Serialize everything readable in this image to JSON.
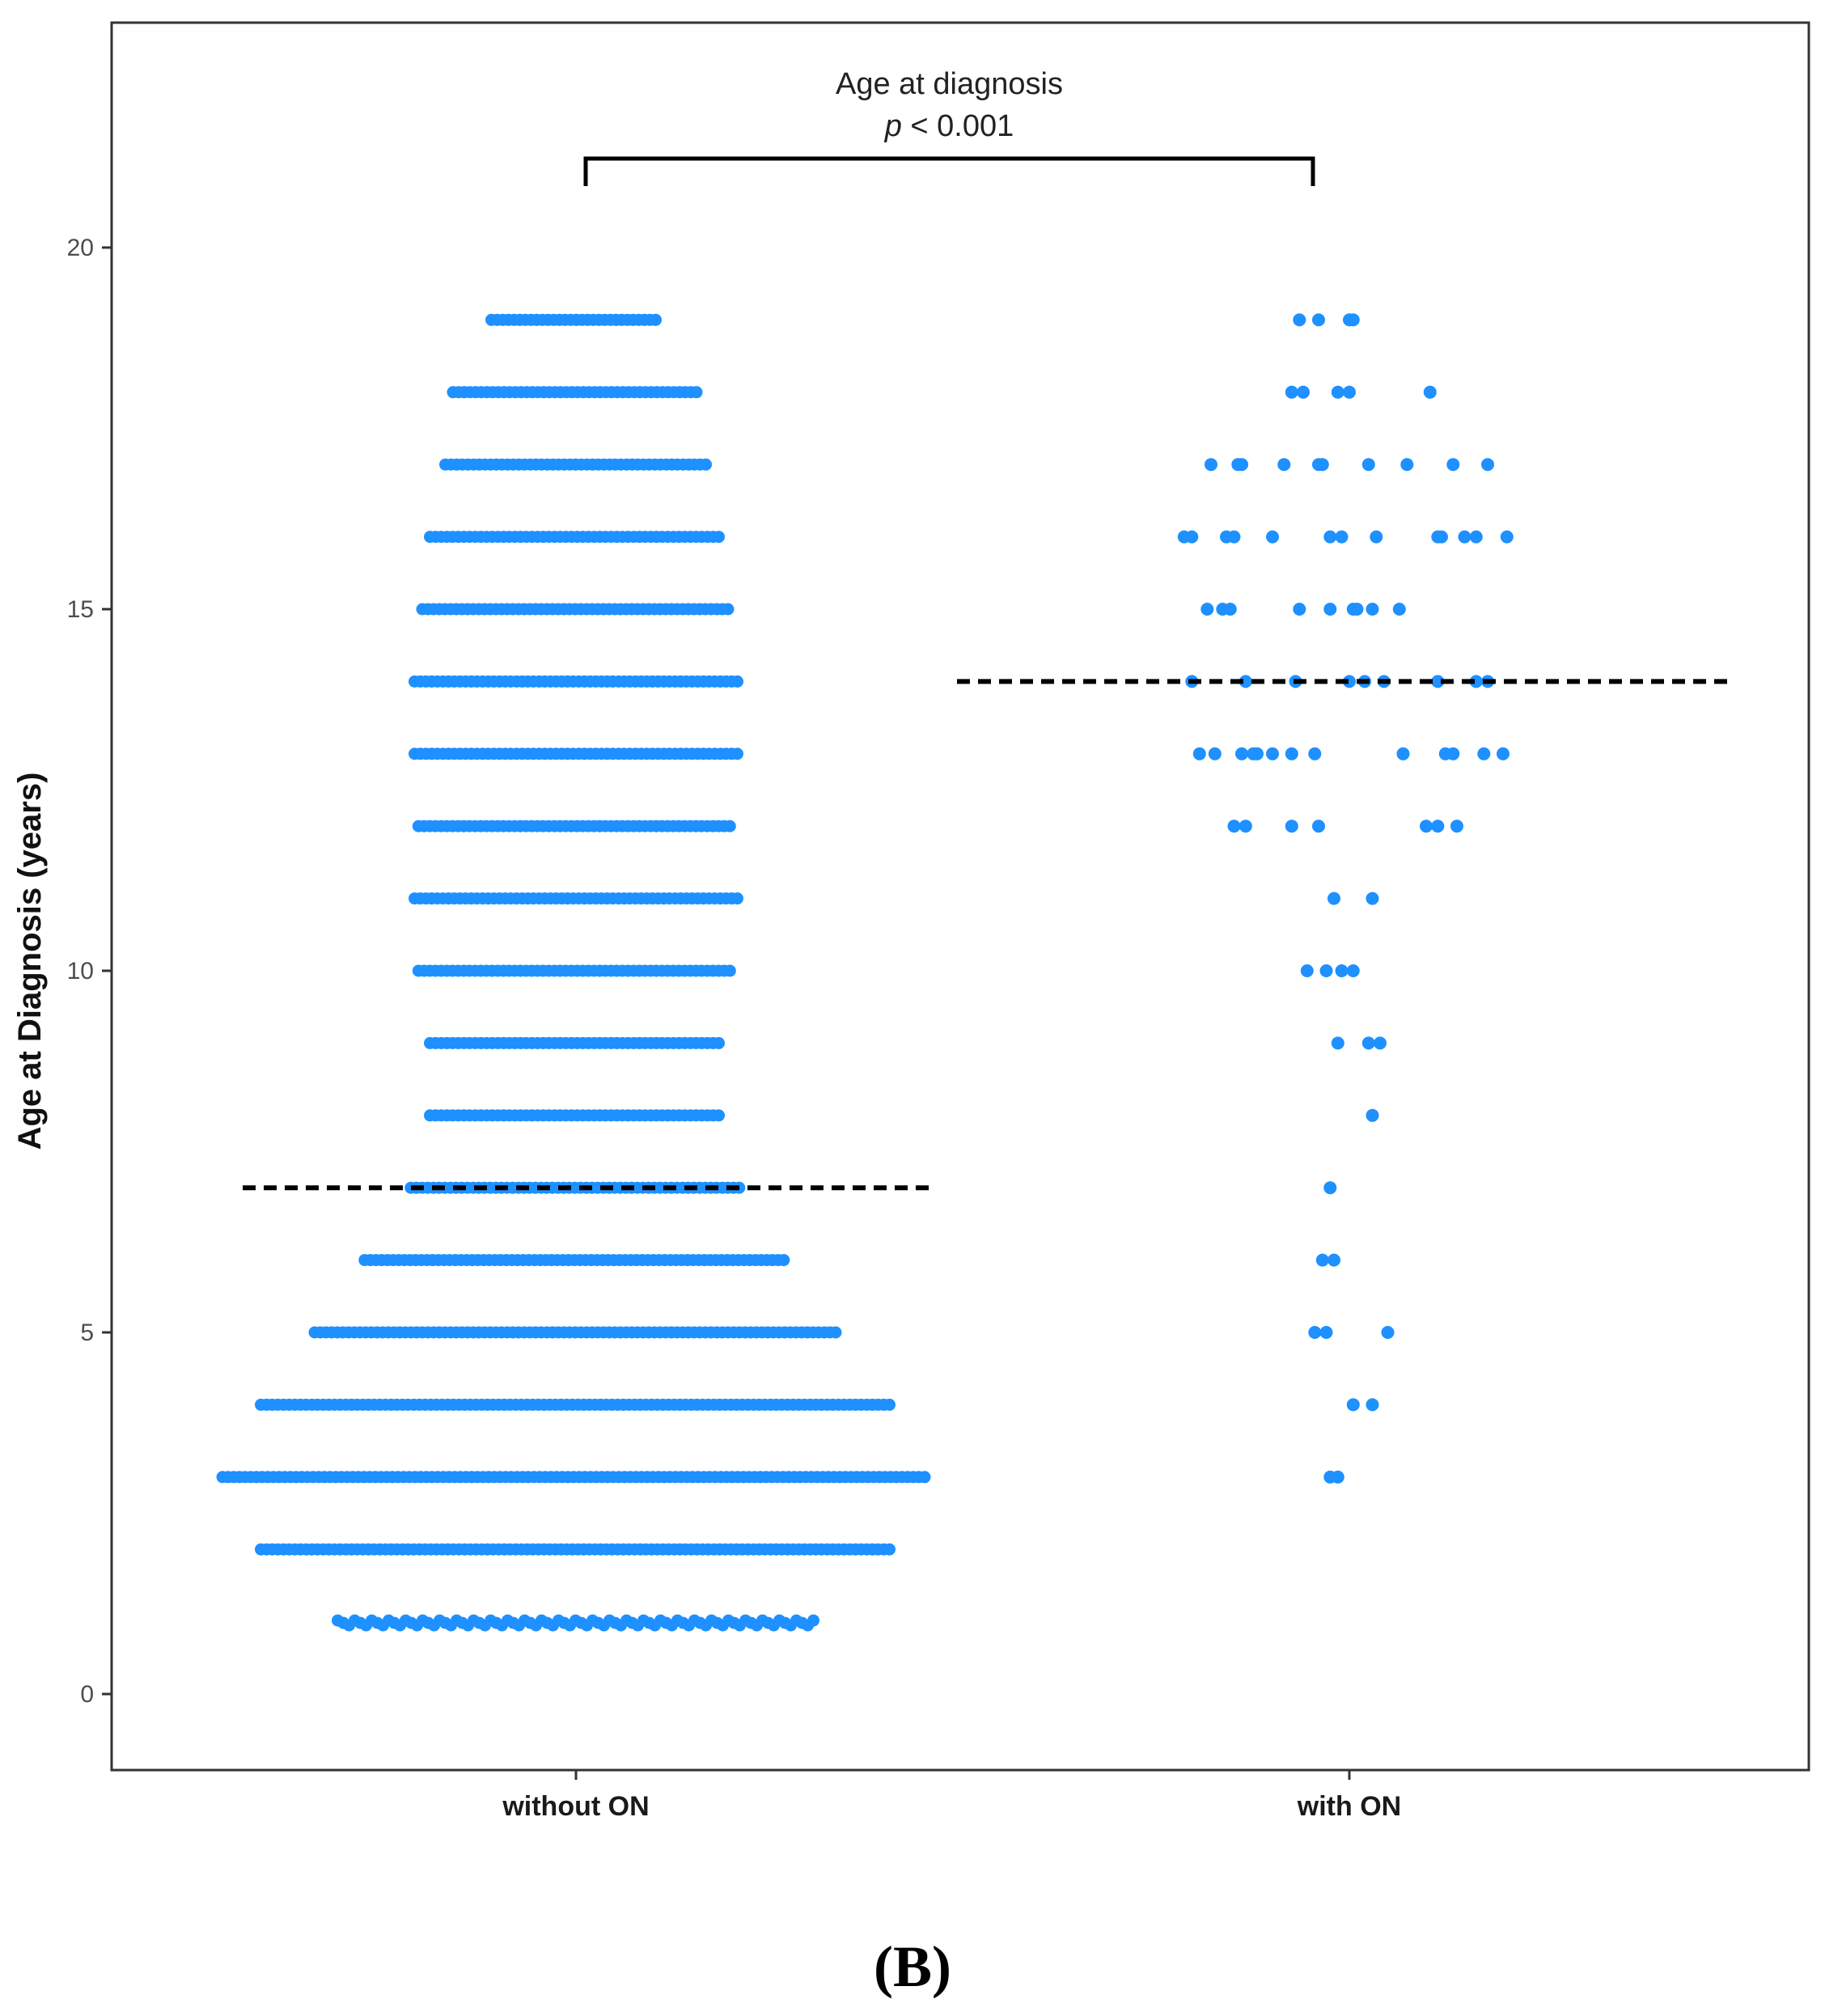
{
  "chart_data": {
    "type": "scatter",
    "title": "",
    "xlabel": "",
    "ylabel": "Age at Diagnosis (years)",
    "ylim": [
      -1.1,
      23.5
    ],
    "yticks": [
      0,
      5,
      10,
      15,
      20
    ],
    "categories": [
      "without ON",
      "with ON"
    ],
    "colors": {
      "points": "#1e90ff",
      "median_line": "#000000",
      "axis": "#333333",
      "bracket": "#000000"
    },
    "groups": [
      {
        "name": "without ON",
        "median": 7,
        "rows": [
          {
            "age": 1,
            "from": -0.62,
            "to": 0.62
          },
          {
            "age": 2,
            "from": -0.82,
            "to": 0.82
          },
          {
            "age": 3,
            "from": -0.92,
            "to": 0.92
          },
          {
            "age": 4,
            "from": -0.82,
            "to": 0.82
          },
          {
            "age": 5,
            "from": -0.68,
            "to": 0.68
          },
          {
            "age": 6,
            "from": -0.55,
            "to": 0.55
          },
          {
            "age": 7,
            "from": -0.43,
            "to": 0.43
          },
          {
            "age": 8,
            "from": -0.38,
            "to": 0.38
          },
          {
            "age": 9,
            "from": -0.38,
            "to": 0.38
          },
          {
            "age": 10,
            "from": -0.41,
            "to": 0.41
          },
          {
            "age": 11,
            "from": -0.42,
            "to": 0.42
          },
          {
            "age": 12,
            "from": -0.41,
            "to": 0.41
          },
          {
            "age": 13,
            "from": -0.42,
            "to": 0.42
          },
          {
            "age": 14,
            "from": -0.42,
            "to": 0.42
          },
          {
            "age": 15,
            "from": -0.4,
            "to": 0.4
          },
          {
            "age": 16,
            "from": -0.38,
            "to": 0.38
          },
          {
            "age": 17,
            "from": -0.34,
            "to": 0.34
          },
          {
            "age": 18,
            "from": -0.32,
            "to": 0.32
          },
          {
            "age": 19,
            "from": -0.22,
            "to": 0.22
          }
        ]
      },
      {
        "name": "with ON",
        "median": 14,
        "points": [
          {
            "age": 3,
            "dx": -0.05
          },
          {
            "age": 3,
            "dx": -0.03
          },
          {
            "age": 4,
            "dx": 0.01
          },
          {
            "age": 4,
            "dx": 0.06
          },
          {
            "age": 5,
            "dx": -0.09
          },
          {
            "age": 5,
            "dx": -0.06
          },
          {
            "age": 5,
            "dx": 0.1
          },
          {
            "age": 6,
            "dx": -0.07
          },
          {
            "age": 6,
            "dx": -0.04
          },
          {
            "age": 7,
            "dx": -0.05
          },
          {
            "age": 8,
            "dx": 0.06
          },
          {
            "age": 9,
            "dx": -0.03
          },
          {
            "age": 9,
            "dx": 0.05
          },
          {
            "age": 9,
            "dx": 0.08
          },
          {
            "age": 10,
            "dx": -0.11
          },
          {
            "age": 10,
            "dx": -0.06
          },
          {
            "age": 10,
            "dx": -0.02
          },
          {
            "age": 10,
            "dx": 0.01
          },
          {
            "age": 11,
            "dx": -0.04
          },
          {
            "age": 11,
            "dx": 0.06
          },
          {
            "age": 12,
            "dx": -0.3
          },
          {
            "age": 12,
            "dx": -0.27
          },
          {
            "age": 12,
            "dx": -0.15
          },
          {
            "age": 12,
            "dx": -0.08
          },
          {
            "age": 12,
            "dx": 0.2
          },
          {
            "age": 12,
            "dx": 0.23
          },
          {
            "age": 12,
            "dx": 0.28
          },
          {
            "age": 13,
            "dx": -0.39
          },
          {
            "age": 13,
            "dx": -0.35
          },
          {
            "age": 13,
            "dx": -0.28
          },
          {
            "age": 13,
            "dx": -0.25
          },
          {
            "age": 13,
            "dx": -0.24
          },
          {
            "age": 13,
            "dx": -0.2
          },
          {
            "age": 13,
            "dx": -0.15
          },
          {
            "age": 13,
            "dx": -0.09
          },
          {
            "age": 13,
            "dx": 0.14
          },
          {
            "age": 13,
            "dx": 0.25
          },
          {
            "age": 13,
            "dx": 0.27
          },
          {
            "age": 13,
            "dx": 0.35
          },
          {
            "age": 13,
            "dx": 0.4
          },
          {
            "age": 14,
            "dx": -0.41
          },
          {
            "age": 14,
            "dx": -0.27
          },
          {
            "age": 14,
            "dx": -0.14
          },
          {
            "age": 14,
            "dx": 0.0
          },
          {
            "age": 14,
            "dx": 0.04
          },
          {
            "age": 14,
            "dx": 0.09
          },
          {
            "age": 14,
            "dx": 0.23
          },
          {
            "age": 14,
            "dx": 0.33
          },
          {
            "age": 14,
            "dx": 0.36
          },
          {
            "age": 15,
            "dx": -0.37
          },
          {
            "age": 15,
            "dx": -0.33
          },
          {
            "age": 15,
            "dx": -0.31
          },
          {
            "age": 15,
            "dx": -0.13
          },
          {
            "age": 15,
            "dx": -0.05
          },
          {
            "age": 15,
            "dx": 0.01
          },
          {
            "age": 15,
            "dx": 0.02
          },
          {
            "age": 15,
            "dx": 0.06
          },
          {
            "age": 15,
            "dx": 0.13
          },
          {
            "age": 16,
            "dx": -0.43
          },
          {
            "age": 16,
            "dx": -0.41
          },
          {
            "age": 16,
            "dx": -0.32
          },
          {
            "age": 16,
            "dx": -0.3
          },
          {
            "age": 16,
            "dx": -0.2
          },
          {
            "age": 16,
            "dx": -0.05
          },
          {
            "age": 16,
            "dx": -0.02
          },
          {
            "age": 16,
            "dx": 0.07
          },
          {
            "age": 16,
            "dx": 0.23
          },
          {
            "age": 16,
            "dx": 0.24
          },
          {
            "age": 16,
            "dx": 0.3
          },
          {
            "age": 16,
            "dx": 0.33
          },
          {
            "age": 16,
            "dx": 0.41
          },
          {
            "age": 17,
            "dx": -0.36
          },
          {
            "age": 17,
            "dx": -0.29
          },
          {
            "age": 17,
            "dx": -0.28
          },
          {
            "age": 17,
            "dx": -0.17
          },
          {
            "age": 17,
            "dx": -0.08
          },
          {
            "age": 17,
            "dx": -0.07
          },
          {
            "age": 17,
            "dx": 0.05
          },
          {
            "age": 17,
            "dx": 0.15
          },
          {
            "age": 17,
            "dx": 0.27
          },
          {
            "age": 17,
            "dx": 0.36
          },
          {
            "age": 18,
            "dx": -0.15
          },
          {
            "age": 18,
            "dx": -0.12
          },
          {
            "age": 18,
            "dx": -0.03
          },
          {
            "age": 18,
            "dx": 0.0
          },
          {
            "age": 18,
            "dx": 0.21
          },
          {
            "age": 19,
            "dx": -0.13
          },
          {
            "age": 19,
            "dx": -0.08
          },
          {
            "age": 19,
            "dx": 0.0
          },
          {
            "age": 19,
            "dx": 0.01
          }
        ]
      }
    ],
    "annotation": {
      "title": "Age at diagnosis",
      "p_symbol": "p",
      "p_rest": " < 0.001"
    }
  },
  "panel_label": "(B)"
}
